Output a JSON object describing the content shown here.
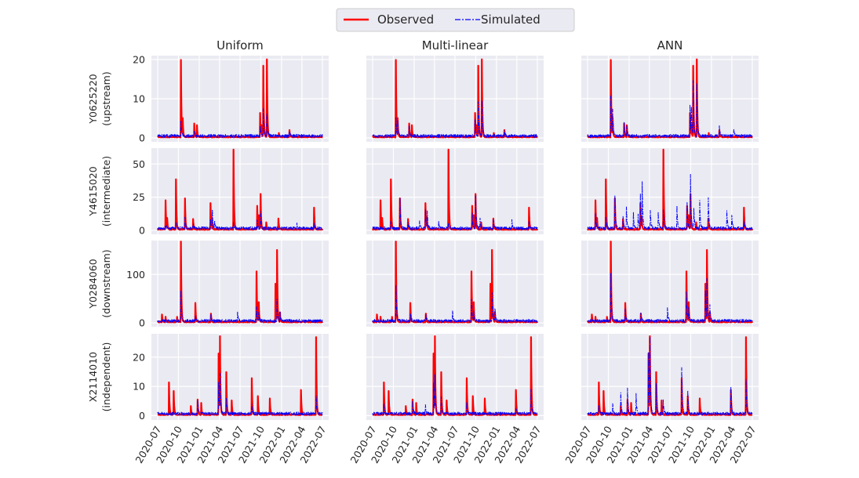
{
  "legend": {
    "observed_label": "Observed",
    "simulated_label": "Simulated"
  },
  "colors": {
    "observed": "#ff0000",
    "simulated": "#0000ff",
    "panel_bg": "#eaeaf2",
    "grid": "#ffffff",
    "text": "#262626"
  },
  "chart_data": {
    "type": "line",
    "title": "",
    "columns": [
      "Uniform",
      "Multi-linear",
      "ANN"
    ],
    "x_range": [
      "2020-07-01",
      "2022-07-01"
    ],
    "x_ticks": [
      "2020-07",
      "2020-10",
      "2021-01",
      "2021-04",
      "2021-07",
      "2021-10",
      "2022-01",
      "2022-04",
      "2022-07"
    ],
    "x_tick_dates": [
      "2020-07-01",
      "2020-10-01",
      "2021-01-01",
      "2021-04-01",
      "2021-07-01",
      "2021-10-01",
      "2022-01-01",
      "2022-04-01",
      "2022-07-01"
    ],
    "grid": true,
    "legend_position": "top-center",
    "series_names": [
      "Observed",
      "Simulated"
    ],
    "rows": [
      {
        "ylabel_line1": "Y0625220",
        "ylabel_line2": "(upstream)",
        "ylim": [
          -1,
          21
        ],
        "yticks": [
          0,
          10,
          20
        ],
        "observed_peaks": [
          [
            "2020-10-12",
            19.6
          ],
          [
            "2020-10-20",
            4.2
          ],
          [
            "2020-12-10",
            3.4
          ],
          [
            "2020-12-22",
            3.0
          ],
          [
            "2021-09-28",
            6.2
          ],
          [
            "2021-10-04",
            2.6
          ],
          [
            "2021-10-12",
            18.0
          ],
          [
            "2021-10-28",
            19.8
          ],
          [
            "2021-12-20",
            1.0
          ],
          [
            "2022-02-05",
            1.6
          ]
        ],
        "simulated_peaks": [
          [
            [
              "2020-10-12",
              3.6
            ],
            [
              "2020-12-10",
              1.5
            ],
            [
              "2021-09-28",
              2.5
            ],
            [
              "2021-10-12",
              6.8
            ],
            [
              "2021-10-28",
              5.6
            ],
            [
              "2022-02-05",
              1.3
            ]
          ],
          [
            [
              "2020-10-12",
              4.5
            ],
            [
              "2020-10-20",
              4.2
            ],
            [
              "2020-12-10",
              2.5
            ],
            [
              "2021-09-28",
              4.5
            ],
            [
              "2021-10-12",
              9.0
            ],
            [
              "2021-10-28",
              9.2
            ],
            [
              "2022-02-05",
              1.2
            ]
          ],
          [
            [
              "2020-10-12",
              10.0
            ],
            [
              "2020-10-20",
              6.5
            ],
            [
              "2020-12-10",
              3.2
            ],
            [
              "2020-12-22",
              2.8
            ],
            [
              "2021-09-28",
              7.8
            ],
            [
              "2021-10-04",
              6.5
            ],
            [
              "2021-10-12",
              13.8
            ],
            [
              "2021-10-28",
              13.6
            ],
            [
              "2022-02-05",
              2.8
            ],
            [
              "2022-04-10",
              1.8
            ]
          ]
        ]
      },
      {
        "ylabel_line1": "Y4615020",
        "ylabel_line2": "(intermediate)",
        "ylim": [
          -3,
          62
        ],
        "yticks": [
          0,
          25,
          50
        ],
        "observed_peaks": [
          [
            "2020-08-05",
            22
          ],
          [
            "2020-08-12",
            8
          ],
          [
            "2020-09-20",
            38
          ],
          [
            "2020-10-30",
            23
          ],
          [
            "2020-12-05",
            8
          ],
          [
            "2021-02-20",
            20
          ],
          [
            "2021-02-26",
            8
          ],
          [
            "2021-06-02",
            60
          ],
          [
            "2021-09-15",
            18
          ],
          [
            "2021-09-22",
            10
          ],
          [
            "2021-09-30",
            26
          ],
          [
            "2021-10-25",
            5
          ],
          [
            "2021-12-18",
            8
          ],
          [
            "2022-05-25",
            16
          ]
        ],
        "simulated_peaks": [
          [
            [
              "2020-08-05",
              3
            ],
            [
              "2020-09-20",
              4
            ],
            [
              "2020-10-30",
              9
            ],
            [
              "2020-12-05",
              3
            ],
            [
              "2021-02-20",
              6
            ],
            [
              "2021-02-28",
              14
            ],
            [
              "2021-03-10",
              6
            ],
            [
              "2021-06-02",
              4
            ],
            [
              "2021-09-15",
              6
            ],
            [
              "2021-09-30",
              12
            ],
            [
              "2022-03-10",
              3
            ],
            [
              "2022-05-25",
              3
            ]
          ],
          [
            [
              "2020-09-20",
              5
            ],
            [
              "2020-10-30",
              22
            ],
            [
              "2020-12-05",
              5
            ],
            [
              "2021-01-25",
              6
            ],
            [
              "2021-02-20",
              14
            ],
            [
              "2021-02-28",
              12
            ],
            [
              "2021-04-20",
              5
            ],
            [
              "2021-06-02",
              5
            ],
            [
              "2021-09-15",
              12
            ],
            [
              "2021-09-30",
              24
            ],
            [
              "2021-10-20",
              8
            ],
            [
              "2021-12-18",
              6
            ],
            [
              "2022-03-10",
              7
            ],
            [
              "2022-05-25",
              5
            ]
          ],
          [
            [
              "2020-08-05",
              12
            ],
            [
              "2020-09-20",
              8
            ],
            [
              "2020-10-30",
              24
            ],
            [
              "2020-12-05",
              10
            ],
            [
              "2020-12-20",
              16
            ],
            [
              "2021-01-20",
              12
            ],
            [
              "2021-02-10",
              10
            ],
            [
              "2021-02-20",
              26
            ],
            [
              "2021-02-28",
              33
            ],
            [
              "2021-04-05",
              14
            ],
            [
              "2021-05-10",
              12
            ],
            [
              "2021-06-02",
              14
            ],
            [
              "2021-08-01",
              16
            ],
            [
              "2021-09-15",
              20
            ],
            [
              "2021-09-30",
              40
            ],
            [
              "2021-10-15",
              15
            ],
            [
              "2021-11-10",
              20
            ],
            [
              "2021-12-18",
              22
            ],
            [
              "2022-03-10",
              13
            ],
            [
              "2022-04-01",
              10
            ],
            [
              "2022-05-25",
              6
            ]
          ]
        ]
      },
      {
        "ylabel_line1": "Y0284060",
        "ylabel_line2": "(downstream)",
        "ylim": [
          -8,
          170
        ],
        "yticks": [
          0,
          100
        ],
        "observed_peaks": [
          [
            "2020-07-20",
            15
          ],
          [
            "2020-08-05",
            10
          ],
          [
            "2020-09-25",
            10
          ],
          [
            "2020-10-12",
            165
          ],
          [
            "2020-12-15",
            40
          ],
          [
            "2021-02-22",
            17
          ],
          [
            "2021-09-12",
            105
          ],
          [
            "2021-09-22",
            40
          ],
          [
            "2021-12-05",
            78
          ],
          [
            "2021-12-12",
            145
          ],
          [
            "2021-12-25",
            20
          ]
        ],
        "simulated_peaks": [
          [
            [
              "2020-10-12",
              65
            ],
            [
              "2020-12-15",
              10
            ],
            [
              "2021-02-22",
              10
            ],
            [
              "2021-06-20",
              20
            ],
            [
              "2021-09-12",
              30
            ],
            [
              "2021-09-22",
              15
            ],
            [
              "2021-12-12",
              45
            ],
            [
              "2021-12-25",
              20
            ]
          ],
          [
            [
              "2020-10-12",
              75
            ],
            [
              "2020-12-15",
              18
            ],
            [
              "2021-02-22",
              12
            ],
            [
              "2021-06-20",
              20
            ],
            [
              "2021-09-12",
              45
            ],
            [
              "2021-09-22",
              20
            ],
            [
              "2021-12-12",
              60
            ],
            [
              "2021-12-25",
              25
            ]
          ],
          [
            [
              "2020-10-12",
              100
            ],
            [
              "2020-12-15",
              25
            ],
            [
              "2021-02-22",
              15
            ],
            [
              "2021-06-20",
              25
            ],
            [
              "2021-09-12",
              60
            ],
            [
              "2021-09-22",
              25
            ],
            [
              "2021-12-05",
              60
            ],
            [
              "2021-12-12",
              80
            ],
            [
              "2021-12-25",
              30
            ]
          ]
        ]
      },
      {
        "ylabel_line1": "X2114010",
        "ylabel_line2": "(independent)",
        "ylim": [
          -1.5,
          28
        ],
        "yticks": [
          0,
          10,
          20
        ],
        "observed_peaks": [
          [
            "2020-08-20",
            11
          ],
          [
            "2020-09-10",
            8
          ],
          [
            "2020-11-25",
            3
          ],
          [
            "2020-12-25",
            5
          ],
          [
            "2021-01-10",
            4
          ],
          [
            "2021-03-28",
            21
          ],
          [
            "2021-04-03",
            25.5
          ],
          [
            "2021-05-01",
            14.5
          ],
          [
            "2021-05-25",
            5
          ],
          [
            "2021-08-22",
            12.5
          ],
          [
            "2021-09-18",
            6.5
          ],
          [
            "2021-11-10",
            5.5
          ],
          [
            "2022-03-28",
            8.5
          ],
          [
            "2022-06-03",
            26.5
          ]
        ],
        "simulated_peaks": [
          [
            [
              "2020-12-25",
              5
            ],
            [
              "2021-03-28",
              11
            ],
            [
              "2021-04-03",
              12
            ],
            [
              "2021-05-01",
              5
            ],
            [
              "2021-08-22",
              3
            ],
            [
              "2022-06-03",
              6
            ]
          ],
          [
            [
              "2020-08-20",
              3
            ],
            [
              "2020-12-25",
              4
            ],
            [
              "2021-02-20",
              3
            ],
            [
              "2021-03-28",
              10
            ],
            [
              "2021-04-03",
              12
            ],
            [
              "2021-05-01",
              6
            ],
            [
              "2021-08-22",
              4
            ],
            [
              "2022-03-28",
              2
            ],
            [
              "2022-06-03",
              8
            ]
          ],
          [
            [
              "2020-08-20",
              3
            ],
            [
              "2020-10-20",
              3.5
            ],
            [
              "2020-11-25",
              7.5
            ],
            [
              "2020-12-25",
              8.5
            ],
            [
              "2021-02-01",
              7
            ],
            [
              "2021-03-28",
              21
            ],
            [
              "2021-04-03",
              24
            ],
            [
              "2021-05-01",
              10
            ],
            [
              "2021-06-01",
              5
            ],
            [
              "2021-08-22",
              16
            ],
            [
              "2021-09-18",
              7.5
            ],
            [
              "2022-03-28",
              9
            ],
            [
              "2022-06-03",
              12
            ]
          ]
        ]
      }
    ]
  }
}
